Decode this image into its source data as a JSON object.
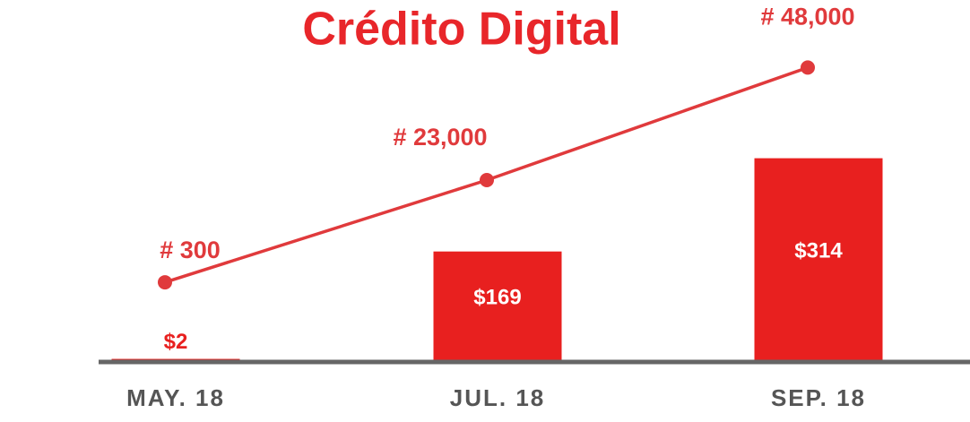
{
  "chart_data": {
    "type": "bar-line",
    "title": "Crédito Digital",
    "categories": [
      "MAY. 18",
      "JUL. 18",
      "SEP. 18"
    ],
    "series": [
      {
        "type": "bar",
        "color": "#e8201f",
        "values": [
          2,
          169,
          314
        ],
        "value_labels": [
          "$2",
          "$169",
          "$314"
        ]
      },
      {
        "type": "line",
        "axis": "y2",
        "color": "#e03a3c",
        "values": [
          300,
          23000,
          48000
        ],
        "value_labels": [
          "# 300",
          "# 23,000",
          "# 48,000"
        ]
      }
    ],
    "ylim": [
      0,
      560
    ],
    "y2lim": [
      -17000,
      63000
    ]
  }
}
